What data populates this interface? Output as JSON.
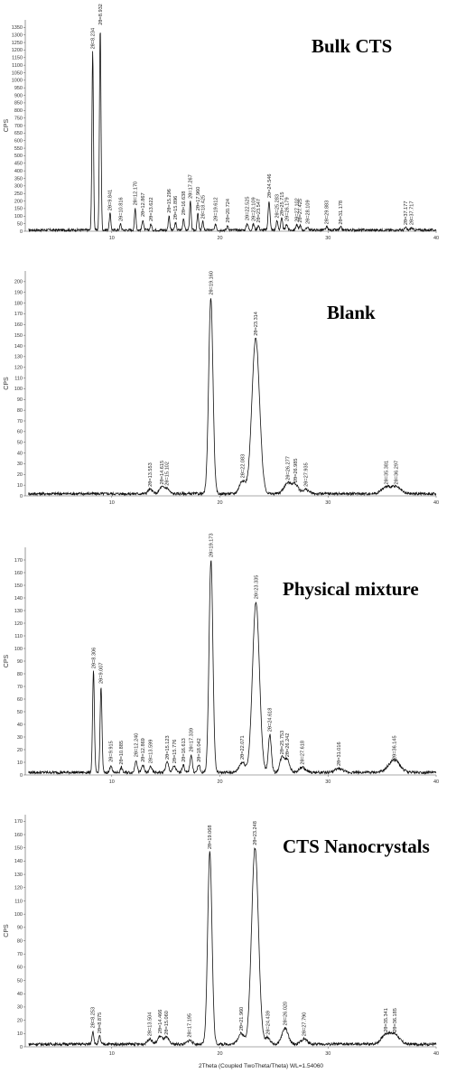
{
  "x_axis_label": "2Theta (Coupled TwoTheta/Theta) WL=1.54060",
  "chart_data": [
    {
      "type": "line",
      "title": "Bulk CTS",
      "ylabel": "CPS",
      "xlim": [
        2,
        40
      ],
      "ylim": [
        0,
        1400
      ],
      "xticks": [
        10,
        20,
        30,
        40
      ],
      "yticks": [
        0,
        50,
        100,
        150,
        200,
        250,
        300,
        350,
        400,
        450,
        500,
        550,
        600,
        650,
        700,
        750,
        800,
        850,
        900,
        950,
        1000,
        1050,
        1100,
        1150,
        1200,
        1250,
        1300,
        1350
      ],
      "baseline": 8,
      "peaks": [
        {
          "x": 8.234,
          "y": 1180,
          "w": 0.1,
          "label": "2θ=8.234"
        },
        {
          "x": 8.932,
          "y": 1340,
          "w": 0.1,
          "label": "2θ=8.932"
        },
        {
          "x": 9.841,
          "y": 110,
          "w": 0.1,
          "label": "2θ=9.841"
        },
        {
          "x": 10.816,
          "y": 40,
          "w": 0.1,
          "label": "2θ=10.816"
        },
        {
          "x": 12.17,
          "y": 145,
          "w": 0.1,
          "label": "2θ=12.170"
        },
        {
          "x": 12.867,
          "y": 70,
          "w": 0.1,
          "label": "2θ=12.867"
        },
        {
          "x": 13.622,
          "y": 40,
          "w": 0.1,
          "label": "2θ=13.622"
        },
        {
          "x": 15.296,
          "y": 95,
          "w": 0.1,
          "label": "2θ=15.296"
        },
        {
          "x": 15.896,
          "y": 50,
          "w": 0.1,
          "label": "2θ=15.896"
        },
        {
          "x": 16.638,
          "y": 80,
          "w": 0.1,
          "label": "2θ=16.638"
        },
        {
          "x": 17.267,
          "y": 190,
          "w": 0.1,
          "label": "2θ=17.267"
        },
        {
          "x": 17.96,
          "y": 110,
          "w": 0.1,
          "label": "2θ=17.960"
        },
        {
          "x": 18.425,
          "y": 55,
          "w": 0.1,
          "label": "2θ=18.425"
        },
        {
          "x": 19.612,
          "y": 40,
          "w": 0.1,
          "label": "2θ=19.612"
        },
        {
          "x": 20.724,
          "y": 30,
          "w": 0.1,
          "label": "2θ=20.724"
        },
        {
          "x": 22.525,
          "y": 45,
          "w": 0.12,
          "label": "2θ=22.525"
        },
        {
          "x": 23.109,
          "y": 40,
          "w": 0.12,
          "label": "2θ=23.109"
        },
        {
          "x": 23.547,
          "y": 30,
          "w": 0.12,
          "label": "2θ=23.547"
        },
        {
          "x": 24.546,
          "y": 195,
          "w": 0.12,
          "label": "2θ=24.546"
        },
        {
          "x": 25.283,
          "y": 60,
          "w": 0.12,
          "label": "2θ=25.283"
        },
        {
          "x": 25.715,
          "y": 75,
          "w": 0.12,
          "label": "2θ=25.715"
        },
        {
          "x": 26.179,
          "y": 40,
          "w": 0.12,
          "label": "2θ=26.179"
        },
        {
          "x": 27.102,
          "y": 35,
          "w": 0.12,
          "label": "2θ=27.102"
        },
        {
          "x": 27.425,
          "y": 30,
          "w": 0.12,
          "label": "2θ=27.425"
        },
        {
          "x": 28.109,
          "y": 22,
          "w": 0.12,
          "label": "2θ=28.109"
        },
        {
          "x": 29.883,
          "y": 20,
          "w": 0.12,
          "label": "2θ=29.883"
        },
        {
          "x": 31.178,
          "y": 18,
          "w": 0.12,
          "label": "2θ=31.178"
        },
        {
          "x": 37.177,
          "y": 15,
          "w": 0.12,
          "label": "2θ=37.177"
        },
        {
          "x": 37.717,
          "y": 15,
          "w": 0.12,
          "label": "2θ=37.717"
        }
      ]
    },
    {
      "type": "line",
      "title": "Blank",
      "ylabel": "CPS",
      "xlim": [
        2,
        40
      ],
      "ylim": [
        0,
        210
      ],
      "xticks": [
        10,
        20,
        30,
        40
      ],
      "yticks": [
        0,
        10,
        20,
        30,
        40,
        50,
        60,
        70,
        80,
        90,
        100,
        110,
        120,
        130,
        140,
        150,
        160,
        170,
        180,
        190,
        200
      ],
      "baseline": 2,
      "peaks": [
        {
          "x": 13.553,
          "y": 4,
          "w": 0.3,
          "label": "2θ=13.553"
        },
        {
          "x": 14.615,
          "y": 6,
          "w": 0.3,
          "label": "2θ=14.615"
        },
        {
          "x": 15.102,
          "y": 5,
          "w": 0.3,
          "label": "2θ=15.102"
        },
        {
          "x": 19.16,
          "y": 183,
          "w": 0.28,
          "label": "2θ=19.160"
        },
        {
          "x": 22.083,
          "y": 12,
          "w": 0.4,
          "label": "2θ=22.083"
        },
        {
          "x": 23.314,
          "y": 145,
          "w": 0.5,
          "label": "2θ=23.314"
        },
        {
          "x": 26.277,
          "y": 10,
          "w": 0.5,
          "label": "2θ=26.277"
        },
        {
          "x": 26.985,
          "y": 8,
          "w": 0.4,
          "label": "2θ=26.985"
        },
        {
          "x": 27.935,
          "y": 4,
          "w": 0.4,
          "label": "2θ=27.935"
        },
        {
          "x": 35.381,
          "y": 6,
          "w": 0.6,
          "label": "2θ=35.381"
        },
        {
          "x": 36.297,
          "y": 6,
          "w": 0.6,
          "label": "2θ=36.297"
        }
      ]
    },
    {
      "type": "line",
      "title": "Physical mixture",
      "ylabel": "CPS",
      "xlim": [
        2,
        40
      ],
      "ylim": [
        0,
        180
      ],
      "xticks": [
        10,
        20,
        30,
        40
      ],
      "yticks": [
        0,
        10,
        20,
        30,
        40,
        50,
        60,
        70,
        80,
        90,
        100,
        110,
        120,
        130,
        140,
        150,
        160,
        170
      ],
      "baseline": 2,
      "peaks": [
        {
          "x": 8.306,
          "y": 80,
          "w": 0.12,
          "label": "2θ=8.306"
        },
        {
          "x": 9.007,
          "y": 68,
          "w": 0.12,
          "label": "2θ=9.007"
        },
        {
          "x": 9.915,
          "y": 6,
          "w": 0.12,
          "label": "2θ=9.915"
        },
        {
          "x": 10.885,
          "y": 4,
          "w": 0.12,
          "label": "2θ=10.885"
        },
        {
          "x": 12.24,
          "y": 10,
          "w": 0.15,
          "label": "2θ=12.240"
        },
        {
          "x": 12.869,
          "y": 6,
          "w": 0.15,
          "label": "2θ=12.869"
        },
        {
          "x": 13.599,
          "y": 5,
          "w": 0.15,
          "label": "2θ=13.599"
        },
        {
          "x": 15.123,
          "y": 8,
          "w": 0.2,
          "label": "2θ=15.123"
        },
        {
          "x": 15.776,
          "y": 5,
          "w": 0.2,
          "label": "2θ=15.776"
        },
        {
          "x": 16.613,
          "y": 6,
          "w": 0.15,
          "label": "2θ=16.613"
        },
        {
          "x": 17.339,
          "y": 14,
          "w": 0.15,
          "label": "2θ=17.339"
        },
        {
          "x": 18.042,
          "y": 6,
          "w": 0.15,
          "label": "2θ=18.042"
        },
        {
          "x": 19.173,
          "y": 168,
          "w": 0.25,
          "label": "2θ=19.173"
        },
        {
          "x": 22.071,
          "y": 8,
          "w": 0.4,
          "label": "2θ=22.071"
        },
        {
          "x": 23.335,
          "y": 135,
          "w": 0.45,
          "label": "2θ=23.335"
        },
        {
          "x": 24.618,
          "y": 30,
          "w": 0.2,
          "label": "2θ=24.618"
        },
        {
          "x": 25.753,
          "y": 12,
          "w": 0.3,
          "label": "2θ=25.753"
        },
        {
          "x": 26.242,
          "y": 10,
          "w": 0.3,
          "label": "2θ=26.242"
        },
        {
          "x": 27.618,
          "y": 4,
          "w": 0.4,
          "label": "2θ=27.618"
        },
        {
          "x": 31.016,
          "y": 3,
          "w": 0.5,
          "label": "2θ=31.016"
        },
        {
          "x": 36.145,
          "y": 8,
          "w": 0.7,
          "label": "2θ=36.145"
        }
      ]
    },
    {
      "type": "line",
      "title": "CTS Nanocrystals",
      "ylabel": "CPS",
      "xlim": [
        2,
        40
      ],
      "ylim": [
        0,
        175
      ],
      "xticks": [
        10,
        20,
        30,
        40
      ],
      "yticks": [
        0,
        10,
        20,
        30,
        40,
        50,
        60,
        70,
        80,
        90,
        100,
        110,
        120,
        130,
        140,
        150,
        160,
        170
      ],
      "baseline": 2,
      "peaks": [
        {
          "x": 8.253,
          "y": 10,
          "w": 0.12,
          "label": "2θ=8.253"
        },
        {
          "x": 8.875,
          "y": 6,
          "w": 0.12,
          "label": "2θ=8.875"
        },
        {
          "x": 13.504,
          "y": 4,
          "w": 0.3,
          "label": "2θ=13.504"
        },
        {
          "x": 14.466,
          "y": 6,
          "w": 0.3,
          "label": "2θ=14.466"
        },
        {
          "x": 15.06,
          "y": 5,
          "w": 0.3,
          "label": "2θ=15.060"
        },
        {
          "x": 17.195,
          "y": 3,
          "w": 0.3,
          "label": "2θ=17.195"
        },
        {
          "x": 19.068,
          "y": 145,
          "w": 0.28,
          "label": "2θ=19.068"
        },
        {
          "x": 21.96,
          "y": 8,
          "w": 0.4,
          "label": "2θ=21.960"
        },
        {
          "x": 23.248,
          "y": 148,
          "w": 0.45,
          "label": "2θ=23.248"
        },
        {
          "x": 24.439,
          "y": 5,
          "w": 0.3,
          "label": "2θ=24.439"
        },
        {
          "x": 26.02,
          "y": 12,
          "w": 0.4,
          "label": "2θ=26.020"
        },
        {
          "x": 27.79,
          "y": 4,
          "w": 0.4,
          "label": "2θ=27.790"
        },
        {
          "x": 35.341,
          "y": 7,
          "w": 0.6,
          "label": "2θ=35.341"
        },
        {
          "x": 36.185,
          "y": 7,
          "w": 0.6,
          "label": "2θ=36.185"
        }
      ]
    }
  ]
}
